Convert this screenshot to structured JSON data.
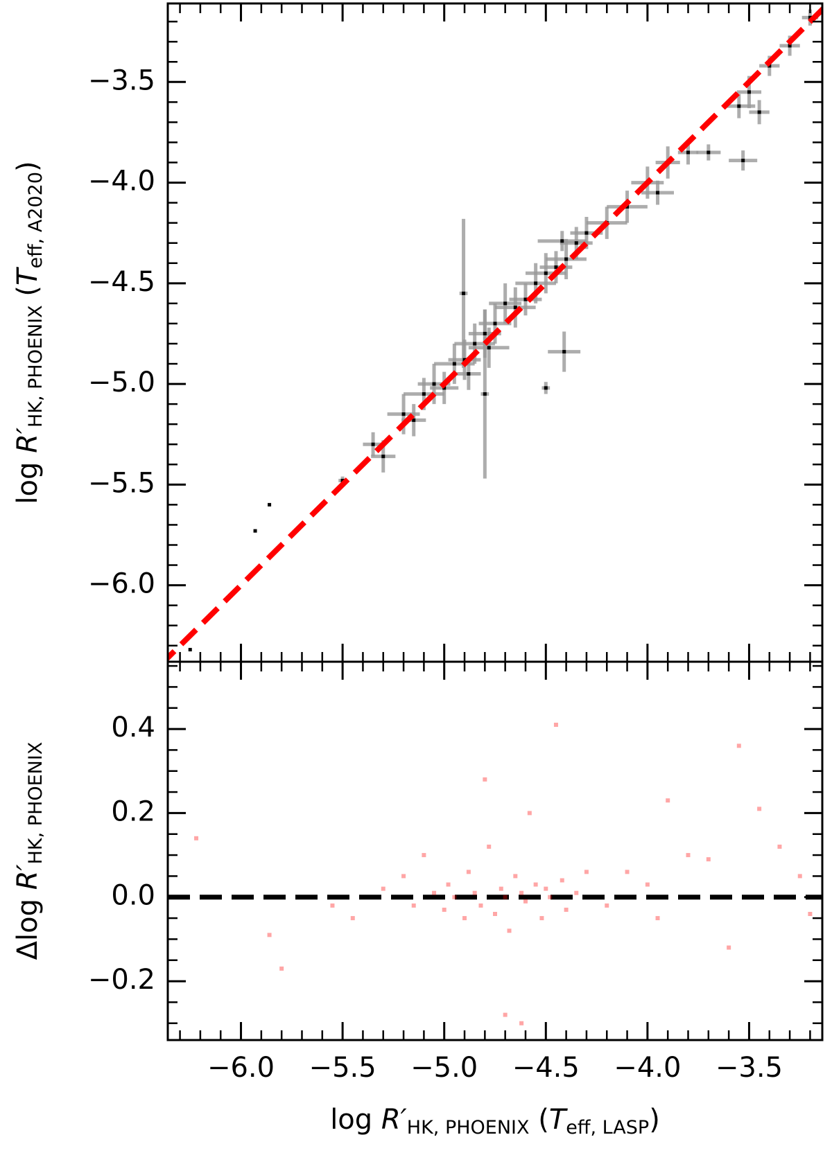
{
  "chart_data": [
    {
      "type": "scatter",
      "ylabel": [
        "log ",
        "R′",
        "HK, PHOENIX",
        " (",
        "T",
        "eff, A2020",
        ")"
      ],
      "x": [
        -6.25,
        -5.86,
        -5.93,
        -5.5,
        -5.35,
        -5.3,
        -5.2,
        -5.15,
        -5.1,
        -5.05,
        -5.0,
        -4.95,
        -4.9,
        -4.88,
        -4.85,
        -4.8,
        -4.78,
        -4.75,
        -4.8,
        -4.905,
        -4.7,
        -4.65,
        -4.6,
        -4.55,
        -4.5,
        -4.45,
        -4.4,
        -4.35,
        -4.3,
        -4.42,
        -4.41,
        -4.5,
        -4.2,
        -4.1,
        -4.0,
        -3.95,
        -3.9,
        -3.8,
        -3.7,
        -3.53,
        -3.55,
        -3.5,
        -3.45,
        -3.4,
        -3.3,
        -3.2
      ],
      "y": [
        -6.32,
        -5.6,
        -5.73,
        -5.48,
        -5.3,
        -5.36,
        -5.15,
        -5.18,
        -5.05,
        -5.0,
        -5.02,
        -4.9,
        -4.88,
        -4.95,
        -4.8,
        -4.75,
        -4.82,
        -4.7,
        -5.05,
        -4.55,
        -4.6,
        -4.62,
        -4.58,
        -4.5,
        -4.45,
        -4.42,
        -4.38,
        -4.3,
        -4.25,
        -4.29,
        -4.84,
        -5.02,
        -4.2,
        -4.12,
        -4.0,
        -4.05,
        -3.9,
        -3.85,
        -3.85,
        -3.89,
        -3.62,
        -3.55,
        -3.65,
        -3.42,
        -3.32,
        -3.18
      ],
      "xerr": [
        0,
        0,
        0,
        0.02,
        0.05,
        0.06,
        0.08,
        0.06,
        0.1,
        0.08,
        0.07,
        0.1,
        0.08,
        0.06,
        0.1,
        0.08,
        0.1,
        0.08,
        0.02,
        0.02,
        0.08,
        0.1,
        0.08,
        0.1,
        0.1,
        0.08,
        0.1,
        0.08,
        0.08,
        0.12,
        0.08,
        0.02,
        0.1,
        0.1,
        0.08,
        0.08,
        0.06,
        0.05,
        0.06,
        0.07,
        0.08,
        0.06,
        0.05,
        0.05,
        0.05,
        0.04
      ],
      "yerr": [
        0,
        0,
        0,
        0.02,
        0.06,
        0.08,
        0.1,
        0.08,
        0.08,
        0.1,
        0.08,
        0.1,
        0.1,
        0.08,
        0.1,
        0.12,
        0.1,
        0.1,
        0.42,
        0.37,
        0.1,
        0.1,
        0.08,
        0.1,
        0.1,
        0.08,
        0.1,
        0.08,
        0.08,
        0.05,
        0.1,
        0.03,
        0.08,
        0.08,
        0.08,
        0.06,
        0.08,
        0.06,
        0.04,
        0.05,
        0.06,
        0.08,
        0.06,
        0.05,
        0.05,
        0.04
      ],
      "color": "#000000",
      "errorbar_color": "#999999",
      "xlim": [
        -6.36,
        -3.14
      ],
      "ylim": [
        -6.38,
        -3.11
      ],
      "xticks": [
        -6,
        -5.5,
        -5,
        -4.5,
        -4,
        -3.5
      ],
      "xminorticks": [
        -6.3,
        -6.2,
        -6.1,
        -5.9,
        -5.8,
        -5.7,
        -5.6,
        -5.4,
        -5.3,
        -5.2,
        -5.1,
        -4.9,
        -4.8,
        -4.7,
        -4.6,
        -4.4,
        -4.3,
        -4.2,
        -4.1,
        -3.9,
        -3.8,
        -3.7,
        -3.6,
        -3.4,
        -3.3,
        -3.2
      ],
      "yticks": [
        {
          "value": -6,
          "label": "−6.0"
        },
        {
          "value": -5.5,
          "label": "−5.5"
        },
        {
          "value": -5,
          "label": "−5.0"
        },
        {
          "value": -4.5,
          "label": "−4.5"
        },
        {
          "value": -4,
          "label": "−4.0"
        },
        {
          "value": -3.5,
          "label": "−3.5"
        }
      ],
      "yminorticks": [
        -6.3,
        -6.2,
        -6.1,
        -5.9,
        -5.8,
        -5.7,
        -5.6,
        -5.4,
        -5.3,
        -5.2,
        -5.1,
        -4.9,
        -4.8,
        -4.7,
        -4.6,
        -4.4,
        -4.3,
        -4.2,
        -4.1,
        -3.9,
        -3.8,
        -3.7,
        -3.6,
        -3.4,
        -3.3,
        -3.2
      ],
      "reference_line": {
        "x": [
          -6.4,
          -3.1
        ],
        "y": [
          -6.4,
          -3.1
        ],
        "color": "#ff0000"
      }
    },
    {
      "type": "scatter",
      "ylabel": [
        "Δlog ",
        "R′",
        "HK, PHOENIX"
      ],
      "xlabel": [
        "log ",
        "R′",
        "HK, PHOENIX",
        " (",
        "T",
        "eff, LASP",
        ")"
      ],
      "x": [
        -6.22,
        -5.86,
        -5.8,
        -5.55,
        -5.3,
        -5.2,
        -5.15,
        -5.1,
        -5.05,
        -5.0,
        -4.98,
        -4.95,
        -4.9,
        -4.88,
        -4.85,
        -4.82,
        -4.8,
        -4.78,
        -4.75,
        -4.72,
        -4.7,
        -4.68,
        -4.65,
        -4.62,
        -4.6,
        -4.58,
        -4.55,
        -4.52,
        -4.5,
        -4.48,
        -4.45,
        -4.42,
        -4.4,
        -4.35,
        -4.3,
        -4.2,
        -4.1,
        -4.0,
        -3.95,
        -3.9,
        -3.8,
        -3.7,
        -3.6,
        -3.55,
        -3.45,
        -3.35,
        -3.25,
        -3.2,
        -5.45,
        -4.7,
        -4.62
      ],
      "y": [
        0.14,
        -0.09,
        -0.17,
        -0.02,
        0.02,
        0.05,
        -0.02,
        0.1,
        0.01,
        -0.03,
        0.03,
        0.0,
        -0.05,
        0.06,
        0.01,
        -0.02,
        0.28,
        0.12,
        -0.04,
        0.02,
        0.0,
        -0.08,
        0.05,
        0.01,
        -0.01,
        0.2,
        0.03,
        -0.05,
        0.02,
        0.0,
        0.41,
        0.04,
        -0.03,
        0.01,
        0.06,
        -0.02,
        0.06,
        0.03,
        -0.05,
        0.23,
        0.1,
        0.09,
        -0.12,
        0.36,
        0.21,
        0.12,
        0.05,
        -0.04,
        -0.05,
        -0.28,
        -0.3
      ],
      "color": "#ff0000",
      "xlim": [
        -6.36,
        -3.14
      ],
      "ylim": [
        -0.34,
        0.56
      ],
      "xticks": [
        {
          "value": -6,
          "label": "−6.0"
        },
        {
          "value": -5.5,
          "label": "−5.5"
        },
        {
          "value": -5,
          "label": "−5.0"
        },
        {
          "value": -4.5,
          "label": "−4.5"
        },
        {
          "value": -4,
          "label": "−4.0"
        },
        {
          "value": -3.5,
          "label": "−3.5"
        }
      ],
      "xminorticks": [
        -6.3,
        -6.2,
        -6.1,
        -5.9,
        -5.8,
        -5.7,
        -5.6,
        -5.4,
        -5.3,
        -5.2,
        -5.1,
        -4.9,
        -4.8,
        -4.7,
        -4.6,
        -4.4,
        -4.3,
        -4.2,
        -4.1,
        -3.9,
        -3.8,
        -3.7,
        -3.6,
        -3.4,
        -3.3,
        -3.2
      ],
      "yticks": [
        {
          "value": -0.2,
          "label": "−0.2"
        },
        {
          "value": 0,
          "label": "0.0"
        },
        0.2,
        0.4
      ],
      "yminorticks": [
        -0.3,
        -0.25,
        -0.15,
        -0.1,
        -0.05,
        0.05,
        0.1,
        0.15,
        0.25,
        0.3,
        0.35,
        0.45,
        0.5,
        0.55
      ],
      "reference_line": {
        "y": 0,
        "color": "#000000"
      }
    }
  ]
}
